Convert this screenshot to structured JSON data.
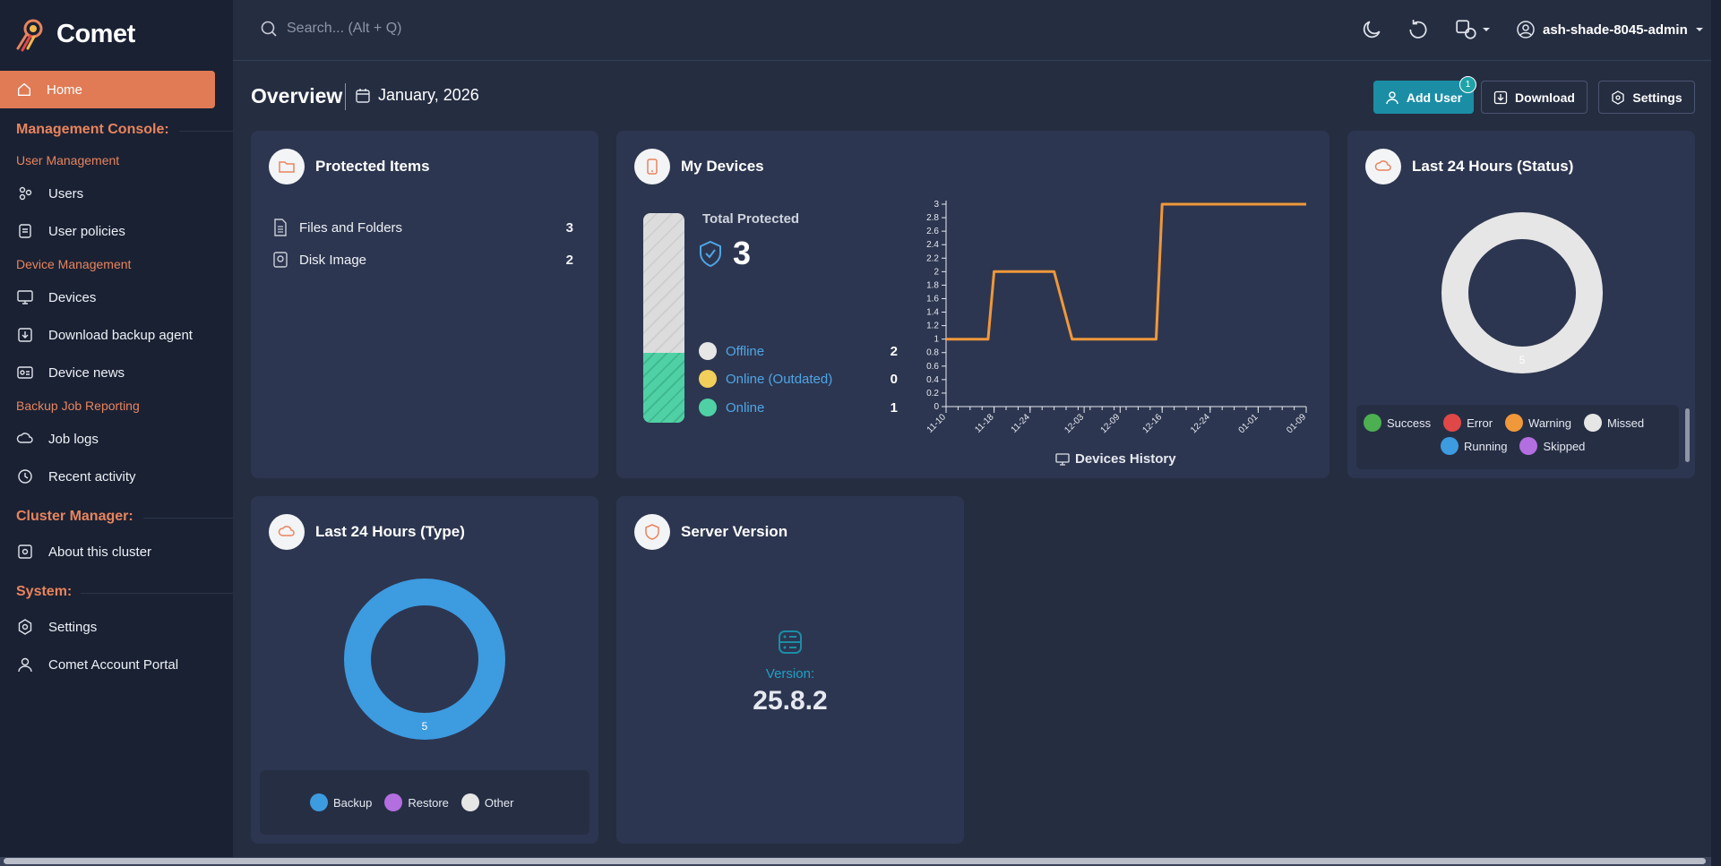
{
  "app": {
    "name": "Comet"
  },
  "search": {
    "placeholder": "Search... (Alt + Q)"
  },
  "user": {
    "name": "ash-shade-8045-admin"
  },
  "sidebar": {
    "home": "Home",
    "management_console": "Management Console:",
    "user_management": "User Management",
    "users": "Users",
    "user_policies": "User policies",
    "device_management": "Device Management",
    "devices": "Devices",
    "download_agent": "Download backup agent",
    "device_news": "Device news",
    "backup_reporting": "Backup Job Reporting",
    "job_logs": "Job logs",
    "recent_activity": "Recent activity",
    "cluster_manager": "Cluster Manager:",
    "about_cluster": "About this cluster",
    "system": "System:",
    "settings": "Settings",
    "account_portal": "Comet Account Portal"
  },
  "header": {
    "title": "Overview",
    "date": "January, 2026",
    "add_user": "Add User",
    "add_user_badge": "1",
    "download": "Download",
    "settings": "Settings"
  },
  "protected_items": {
    "title": "Protected Items",
    "rows": [
      {
        "label": "Files and Folders",
        "value": "3"
      },
      {
        "label": "Disk Image",
        "value": "2"
      }
    ]
  },
  "my_devices": {
    "title": "My Devices",
    "total_label": "Total Protected",
    "total": "3",
    "online_fraction": 0.333,
    "legend": [
      {
        "label": "Offline",
        "value": "2",
        "color": "#e6e6e6"
      },
      {
        "label": "Online (Outdated)",
        "value": "0",
        "color": "#f2cf5b"
      },
      {
        "label": "Online",
        "value": "1",
        "color": "#4fd1a5"
      }
    ],
    "history_label": "Devices History"
  },
  "chart_data": {
    "type": "line",
    "series": [
      {
        "points": [
          [
            "11-10",
            1
          ],
          [
            "11-17",
            1
          ],
          [
            "11-18",
            2
          ],
          [
            "11-24",
            2
          ],
          [
            "11-28",
            2
          ],
          [
            "12-01",
            1
          ],
          [
            "12-15",
            1
          ],
          [
            "12-16",
            3
          ],
          [
            "01-09",
            3
          ]
        ],
        "color": "#f0983a"
      }
    ],
    "xticks": [
      "11-10",
      "11-18",
      "11-24",
      "12-03",
      "12-09",
      "12-16",
      "12-24",
      "01-01",
      "01-09"
    ],
    "yticks": [
      0,
      0.2,
      0.4,
      0.6,
      0.8,
      1,
      1.2,
      1.4,
      1.6,
      1.8,
      2,
      2.2,
      2.4,
      2.6,
      2.8,
      3
    ],
    "ylim": [
      0,
      3
    ],
    "xlabel": "Devices History"
  },
  "status24": {
    "title": "Last 24 Hours (Status)",
    "center_value": "5",
    "legend": [
      {
        "label": "Success",
        "color": "#4caf50"
      },
      {
        "label": "Error",
        "color": "#e04848"
      },
      {
        "label": "Warning",
        "color": "#f0983a"
      },
      {
        "label": "Missed",
        "color": "#e6e6e6"
      },
      {
        "label": "Running",
        "color": "#3d9be0"
      },
      {
        "label": "Skipped",
        "color": "#b36ee0"
      }
    ]
  },
  "type24": {
    "title": "Last 24 Hours (Type)",
    "center_value": "5",
    "legend": [
      {
        "label": "Backup",
        "color": "#3d9be0"
      },
      {
        "label": "Restore",
        "color": "#b36ee0"
      },
      {
        "label": "Other",
        "color": "#e6e6e6"
      }
    ]
  },
  "server_version": {
    "title": "Server Version",
    "version_label": "Version:",
    "version": "25.8.2"
  }
}
